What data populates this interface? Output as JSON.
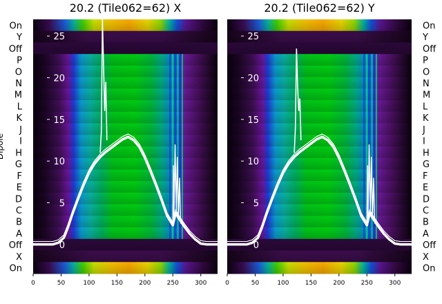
{
  "chart_data": [
    {
      "type": "heatmap",
      "title": "20.2 (Tile062=62) X",
      "ylabel": "Dipole",
      "row_labels": [
        "On",
        "Y",
        "Off",
        "P",
        "O",
        "N",
        "M",
        "L",
        "K",
        "J",
        "I",
        "H",
        "G",
        "F",
        "E",
        "D",
        "C",
        "B",
        "A",
        "Off",
        "X",
        "On"
      ],
      "x_ticks": [
        0,
        50,
        100,
        150,
        200,
        250,
        300
      ],
      "xlim": [
        0,
        330
      ],
      "y_ticks": [
        0,
        5,
        10,
        15,
        20,
        25
      ],
      "ylim": [
        -3.5,
        27
      ],
      "colormap": "nipy_spectral",
      "line": {
        "color": "#ffffff",
        "x": [
          0,
          35,
          45,
          55,
          62,
          70,
          80,
          90,
          100,
          110,
          120,
          130,
          140,
          150,
          160,
          170,
          180,
          190,
          200,
          210,
          220,
          230,
          240,
          250,
          255,
          260,
          265,
          270,
          280,
          290,
          300,
          310,
          330
        ],
        "y": [
          0,
          0,
          0.2,
          0.8,
          2,
          3.6,
          5.4,
          7.1,
          8.6,
          9.7,
          10.5,
          11.1,
          11.6,
          12.1,
          12.6,
          12.9,
          12.5,
          11.7,
          10.4,
          8.8,
          7.1,
          5.3,
          3.4,
          2.3,
          3.8,
          3.2,
          2.7,
          2.2,
          1.3,
          0.6,
          0.1,
          0,
          0
        ],
        "spike_x": [
          120,
          122,
          124,
          126,
          128,
          130,
          132
        ],
        "spike_y": [
          11,
          13.5,
          27,
          21.5,
          16,
          19.5,
          12.5
        ]
      }
    },
    {
      "type": "heatmap",
      "title": "20.2 (Tile062=62) Y",
      "ylabel": "",
      "row_labels": [
        "On",
        "Y",
        "Off",
        "P",
        "O",
        "N",
        "M",
        "L",
        "K",
        "J",
        "I",
        "H",
        "G",
        "F",
        "E",
        "D",
        "C",
        "B",
        "A",
        "Off",
        "X",
        "On"
      ],
      "x_ticks": [
        0,
        50,
        100,
        150,
        200,
        250,
        300
      ],
      "xlim": [
        0,
        330
      ],
      "y_ticks": [
        0,
        5,
        10,
        15,
        20,
        25
      ],
      "ylim": [
        -3.5,
        27
      ],
      "colormap": "nipy_spectral",
      "line": {
        "color": "#ffffff",
        "x": [
          0,
          35,
          45,
          55,
          62,
          70,
          80,
          90,
          100,
          110,
          120,
          130,
          140,
          150,
          160,
          170,
          180,
          190,
          200,
          210,
          220,
          230,
          240,
          250,
          255,
          260,
          265,
          270,
          280,
          290,
          300,
          310,
          330
        ],
        "y": [
          0,
          0,
          0.2,
          0.8,
          2,
          3.6,
          5.4,
          7.1,
          8.6,
          9.7,
          10.5,
          11.1,
          11.6,
          12.1,
          12.6,
          12.9,
          12.5,
          11.7,
          10.4,
          8.8,
          7.1,
          5.3,
          3.4,
          2.3,
          3.8,
          3.2,
          2.7,
          2.2,
          1.3,
          0.6,
          0.1,
          0,
          0
        ],
        "spike_x": [
          120,
          122,
          124,
          126,
          128,
          130,
          132
        ],
        "spike_y": [
          11,
          14,
          23.5,
          19,
          16,
          17.5,
          12.5
        ]
      }
    }
  ]
}
